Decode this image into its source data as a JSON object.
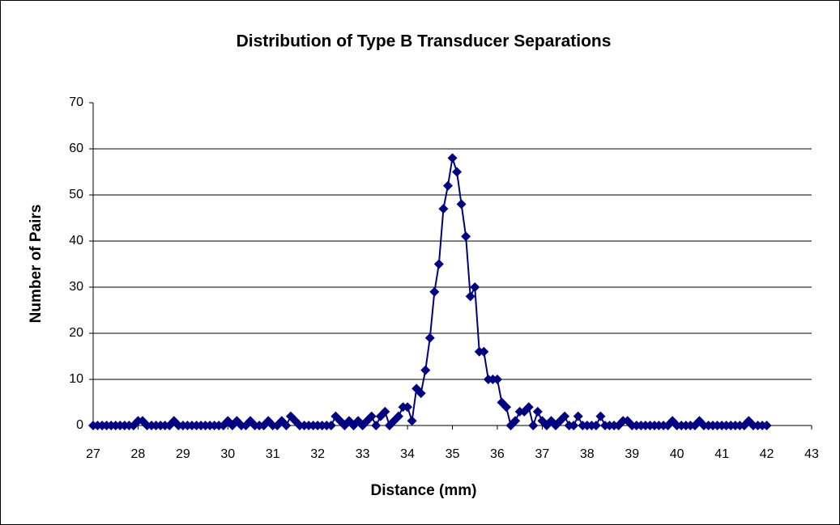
{
  "chart_data": {
    "type": "line",
    "title": "Distribution of Type B Transducer Separations",
    "x_label": "Distance (mm)",
    "y_label": "Number of Pairs",
    "x": [
      27,
      27.1,
      27.2,
      27.3,
      27.4,
      27.5,
      27.6,
      27.7,
      27.8,
      27.9,
      28,
      28.1,
      28.2,
      28.3,
      28.4,
      28.5,
      28.6,
      28.7,
      28.8,
      28.9,
      29,
      29.1,
      29.2,
      29.3,
      29.4,
      29.5,
      29.6,
      29.7,
      29.8,
      29.9,
      30,
      30.1,
      30.2,
      30.3,
      30.4,
      30.5,
      30.6,
      30.7,
      30.8,
      30.9,
      31,
      31.1,
      31.2,
      31.3,
      31.4,
      31.5,
      31.6,
      31.7,
      31.8,
      31.9,
      32,
      32.1,
      32.2,
      32.3,
      32.4,
      32.5,
      32.6,
      32.7,
      32.8,
      32.9,
      33,
      33.1,
      33.2,
      33.3,
      33.4,
      33.5,
      33.6,
      33.7,
      33.8,
      33.9,
      34,
      34.1,
      34.2,
      34.3,
      34.4,
      34.5,
      34.6,
      34.7,
      34.8,
      34.9,
      35,
      35.1,
      35.2,
      35.3,
      35.4,
      35.5,
      35.6,
      35.7,
      35.8,
      35.9,
      36,
      36.1,
      36.2,
      36.3,
      36.4,
      36.5,
      36.6,
      36.7,
      36.8,
      36.9,
      37,
      37.1,
      37.2,
      37.3,
      37.4,
      37.5,
      37.6,
      37.7,
      37.8,
      37.9,
      38,
      38.1,
      38.2,
      38.3,
      38.4,
      38.5,
      38.6,
      38.7,
      38.8,
      38.9,
      39,
      39.1,
      39.2,
      39.3,
      39.4,
      39.5,
      39.6,
      39.7,
      39.8,
      39.9,
      40,
      40.1,
      40.2,
      40.3,
      40.4,
      40.5,
      40.6,
      40.7,
      40.8,
      40.9,
      41,
      41.1,
      41.2,
      41.3,
      41.4,
      41.5,
      41.6,
      41.7,
      41.8,
      41.9,
      42
    ],
    "series": [
      {
        "name": "Number of Pairs",
        "color": "#000080",
        "values": [
          0,
          0,
          0,
          0,
          0,
          0,
          0,
          0,
          0,
          0,
          1,
          1,
          0,
          0,
          0,
          0,
          0,
          0,
          1,
          0,
          0,
          0,
          0,
          0,
          0,
          0,
          0,
          0,
          0,
          0,
          1,
          0,
          1,
          0,
          0,
          1,
          0,
          0,
          0,
          1,
          0,
          0,
          1,
          0,
          2,
          1,
          0,
          0,
          0,
          0,
          0,
          0,
          0,
          0,
          2,
          1,
          0,
          1,
          0,
          1,
          0,
          1,
          2,
          0,
          2,
          3,
          0,
          1,
          2,
          4,
          4,
          1,
          8,
          7,
          12,
          19,
          29,
          35,
          47,
          52,
          58,
          55,
          48,
          41,
          28,
          30,
          16,
          16,
          10,
          10,
          10,
          5,
          4,
          0,
          1,
          3,
          3,
          4,
          0,
          3,
          1,
          0,
          1,
          0,
          1,
          2,
          0,
          0,
          2,
          0,
          0,
          0,
          0,
          2,
          0,
          0,
          0,
          0,
          1,
          1,
          0,
          0,
          0,
          0,
          0,
          0,
          0,
          0,
          0,
          1,
          0,
          0,
          0,
          0,
          0,
          1,
          0,
          0,
          0,
          0,
          0,
          0,
          0,
          0,
          0,
          0,
          1,
          0,
          0,
          0,
          0
        ]
      }
    ],
    "xlim": [
      27,
      43
    ],
    "xticks": [
      27,
      28,
      29,
      30,
      31,
      32,
      33,
      34,
      35,
      36,
      37,
      38,
      39,
      40,
      41,
      42,
      43
    ],
    "ylim": [
      0,
      70
    ],
    "yticks": [
      0,
      10,
      20,
      30,
      40,
      50,
      60,
      70
    ],
    "grid": true
  }
}
